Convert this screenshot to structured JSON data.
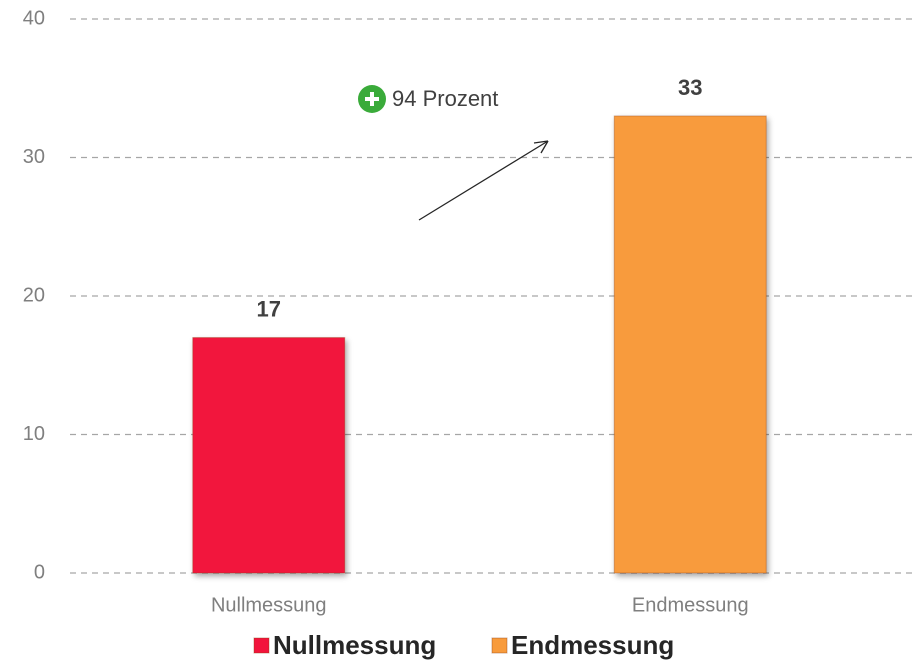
{
  "chart_data": {
    "type": "bar",
    "categories": [
      "Nullmessung",
      "Endmessung"
    ],
    "series": [
      {
        "name": "Nullmessung",
        "color": "#f2143c",
        "values": [
          17,
          null
        ]
      },
      {
        "name": "Endmessung",
        "color": "#f89b3c",
        "values": [
          null,
          33
        ]
      }
    ],
    "ylim": [
      0,
      40
    ],
    "yticks": [
      0,
      10,
      20,
      30,
      40
    ],
    "grid": true,
    "annotation": "94 Prozent"
  }
}
